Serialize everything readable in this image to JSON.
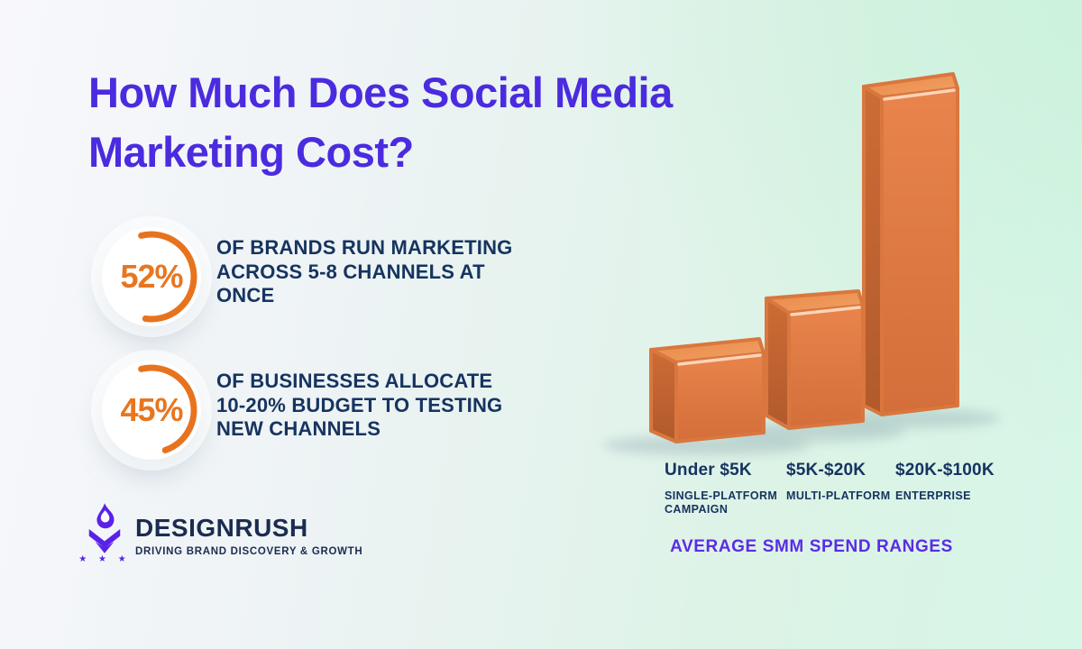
{
  "title": "How Much Does Social Media Marketing Cost?",
  "stats": [
    {
      "value": "52%",
      "pct": 52,
      "lines": [
        "OF BRANDS RUN MARKETING",
        "ACROSS 5-8 CHANNELS AT",
        "ONCE"
      ]
    },
    {
      "value": "45%",
      "pct": 45,
      "lines": [
        "OF BUSINESSES ALLOCATE",
        "10-20% BUDGET TO TESTING",
        "NEW CHANNELS"
      ]
    }
  ],
  "chart_data": {
    "type": "bar",
    "title": "AVERAGE SMM SPEND RANGES",
    "categories": [
      "Under $5K",
      "$5K-$20K",
      "$20K-$100K"
    ],
    "sublabels": [
      "SINGLE-PLATFORM CAMPAIGN",
      "MULTI-PLATFORM",
      "ENTERPRISE"
    ],
    "relative_heights": [
      88,
      128,
      352
    ],
    "bar_color": "#df7a3f",
    "legend": "none",
    "axis": "none"
  },
  "logo": {
    "name": "DESIGNRUSH",
    "tagline": "DRIVING BRAND DISCOVERY & GROWTH",
    "stars": "★ ★ ★"
  },
  "colors": {
    "title_purple": "#4b2bdf",
    "caption_purple": "#5b2be6",
    "navy": "#163460",
    "stat_orange": "#e8761f",
    "bar_front": "#df7a3f",
    "bar_side": "#c06430",
    "bar_top": "#ee9255",
    "background_mint": "#d6f6e8"
  }
}
